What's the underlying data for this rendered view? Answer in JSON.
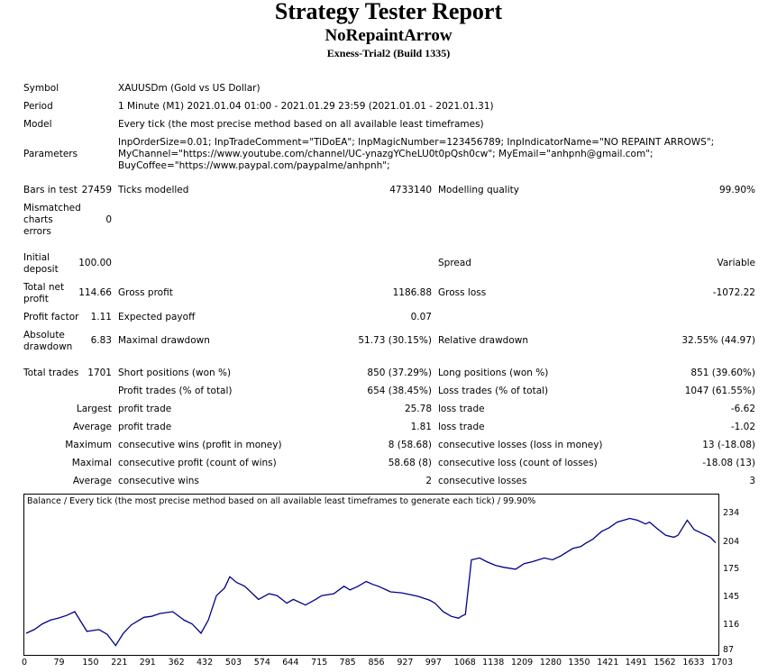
{
  "header": {
    "title": "Strategy Tester Report",
    "ea_name": "NoRepaintArrow",
    "server": "Exness-Trial2 (Build 1335)"
  },
  "info": {
    "symbol_label": "Symbol",
    "symbol_value": "XAUUSDm (Gold vs US Dollar)",
    "period_label": "Period",
    "period_value": "1 Minute (M1) 2021.01.04 01:00 - 2021.01.29 23:59 (2021.01.01 - 2021.01.31)",
    "model_label": "Model",
    "model_value": "Every tick (the most precise method based on all available least timeframes)",
    "parameters_label": "Parameters",
    "parameters_line1": "InpOrderSize=0.01; InpTradeComment=\"TiDoEA\"; InpMagicNumber=123456789; InpIndicatorName=\"NO REPAINT ARROWS\";",
    "parameters_line2": "MyChannel=\"https://www.youtube.com/channel/UC-ynazgYCheLU0t0pQsh0cw\"; MyEmail=\"anhpnh@gmail.com\";",
    "parameters_line3": "BuyCoffee=\"https://www.paypal.com/paypalme/anhpnh\";"
  },
  "stats": {
    "bars_label": "Bars in test",
    "bars_value": "27459",
    "ticks_label": "Ticks modelled",
    "ticks_value": "4733140",
    "quality_label": "Modelling quality",
    "quality_value": "99.90%",
    "mismatch_label": "Mismatched charts errors",
    "mismatch_value": "0",
    "deposit_label": "Initial deposit",
    "deposit_value": "100.00",
    "spread_label": "Spread",
    "spread_value": "Variable",
    "netprofit_label": "Total net profit",
    "netprofit_value": "114.66",
    "grossprofit_label": "Gross profit",
    "grossprofit_value": "1186.88",
    "grossloss_label": "Gross loss",
    "grossloss_value": "-1072.22",
    "pf_label": "Profit factor",
    "pf_value": "1.11",
    "payoff_label": "Expected payoff",
    "payoff_value": "0.07",
    "absdd_label": "Absolute drawdown",
    "absdd_value": "6.83",
    "maxdd_label": "Maximal drawdown",
    "maxdd_value": "51.73 (30.15%)",
    "reldd_label": "Relative drawdown",
    "reldd_value": "32.55% (44.97)",
    "trades_label": "Total trades",
    "trades_value": "1701",
    "short_label": "Short positions (won %)",
    "short_value": "850 (37.29%)",
    "long_label": "Long positions (won %)",
    "long_value": "851 (39.60%)",
    "ptrades_label": "Profit trades (% of total)",
    "ptrades_value": "654 (38.45%)",
    "ltrades_label": "Loss trades (% of total)",
    "ltrades_value": "1047 (61.55%)",
    "largest_label": "Largest",
    "largest_profit_label": "profit trade",
    "largest_profit_value": "25.78",
    "largest_loss_label": "loss trade",
    "largest_loss_value": "-6.62",
    "average_label": "Average",
    "average_profit_label": "profit trade",
    "average_profit_value": "1.81",
    "average_loss_label": "loss trade",
    "average_loss_value": "-1.02",
    "maximum_label": "Maximum",
    "max_wins_label": "consecutive wins (profit in money)",
    "max_wins_value": "8 (58.68)",
    "max_losses_label": "consecutive losses (loss in money)",
    "max_losses_value": "13 (-18.08)",
    "maximal_label": "Maximal",
    "maximal_profit_label": "consecutive profit (count of wins)",
    "maximal_profit_value": "58.68 (8)",
    "maximal_loss_label": "consecutive loss (count of losses)",
    "maximal_loss_value": "-18.08 (13)",
    "avg2_label": "Average",
    "avg_wins_label": "consecutive wins",
    "avg_wins_value": "2",
    "avg_losses_label": "consecutive losses",
    "avg_losses_value": "3"
  },
  "chart_data": {
    "type": "line",
    "title": "Balance / Every tick (the most precise method based on all available least timeframes to generate each tick) / 99.90%",
    "line_color": "#00008b",
    "x_ticks": [
      "0",
      "79",
      "150",
      "221",
      "291",
      "362",
      "432",
      "503",
      "574",
      "644",
      "715",
      "785",
      "856",
      "927",
      "997",
      "1068",
      "1138",
      "1209",
      "1280",
      "1350",
      "1421",
      "1491",
      "1562",
      "1633",
      "1703"
    ],
    "y_ticks": [
      "234",
      "204",
      "175",
      "145",
      "116",
      "87"
    ],
    "xlim": [
      0,
      1710
    ],
    "ylim": [
      87,
      240
    ],
    "series": [
      {
        "x": [
          0,
          20,
          40,
          60,
          79,
          100,
          120,
          150,
          180,
          200,
          221,
          240,
          260,
          291,
          310,
          330,
          362,
          390,
          410,
          432,
          450,
          470,
          490,
          503,
          520,
          540,
          574,
          600,
          620,
          644,
          660,
          690,
          715,
          730,
          760,
          785,
          800,
          820,
          840,
          856,
          870,
          890,
          900,
          927,
          950,
          970,
          997,
          1010,
          1030,
          1050,
          1068,
          1075,
          1085,
          1100,
          1120,
          1138,
          1160,
          1180,
          1209,
          1230,
          1250,
          1280,
          1300,
          1320,
          1350,
          1370,
          1380,
          1400,
          1421,
          1440,
          1460,
          1491,
          1510,
          1530,
          1540,
          1562,
          1580,
          1600,
          1610,
          1633,
          1640,
          1650,
          1660,
          1680,
          1690,
          1703
        ],
        "y": [
          108,
          112,
          118,
          122,
          124,
          127,
          131,
          110,
          112,
          107,
          95,
          108,
          117,
          125,
          126,
          129,
          131,
          122,
          118,
          108,
          122,
          148,
          156,
          168,
          162,
          158,
          144,
          150,
          148,
          140,
          144,
          138,
          144,
          148,
          150,
          158,
          154,
          158,
          163,
          160,
          158,
          154,
          152,
          151,
          149,
          147,
          143,
          140,
          131,
          126,
          124,
          126,
          128,
          186,
          188,
          184,
          180,
          178,
          176,
          182,
          184,
          188,
          186,
          190,
          198,
          200,
          203,
          208,
          216,
          220,
          226,
          230,
          228,
          224,
          226,
          218,
          212,
          210,
          212,
          228,
          224,
          218,
          216,
          212,
          210,
          204
        ]
      }
    ]
  }
}
